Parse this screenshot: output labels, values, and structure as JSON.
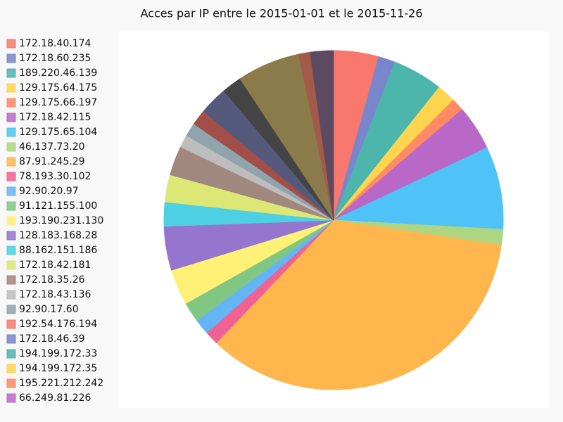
{
  "chart_data": {
    "type": "pie",
    "title": "Acces par IP entre le 2015-01-01 et le 2015-11-26",
    "categories": [
      "172.18.40.174",
      "172.18.60.235",
      "189.220.46.139",
      "129.175.64.175",
      "129.175.66.197",
      "172.18.42.115",
      "129.175.65.104",
      "46.137.73.20",
      "87.91.245.29",
      "78.193.30.102",
      "92.90.20.97",
      "91.121.155.100",
      "193.190.231.130",
      "128.183.168.28",
      "88.162.151.186",
      "172.18.42.181",
      "172.18.35.26",
      "172.18.43.136",
      "92.90.17.60",
      "192.54.176.194",
      "172.18.46.39",
      "194.199.172.33",
      "194.199.172.35",
      "195.221.212.242",
      "66.249.81.226"
    ],
    "values": [
      4.3,
      1.6,
      4.8,
      1.8,
      1.2,
      4.3,
      7.9,
      1.5,
      34.8,
      1.3,
      1.5,
      1.9,
      3.4,
      4.2,
      2.3,
      2.6,
      2.8,
      1.2,
      1.3,
      1.5,
      2.7,
      1.9,
      6.0,
      1.1,
      2.2
    ],
    "colors": [
      "#f8786d",
      "#7986cb",
      "#4db6ac",
      "#ffd54f",
      "#ff8a65",
      "#ba68c8",
      "#4fc3f7",
      "#aed581",
      "#ffb74d",
      "#f06292",
      "#64b5f6",
      "#81c784",
      "#fff176",
      "#9575cd",
      "#4dd0e1",
      "#dce775",
      "#a1887f",
      "#bdbdbd",
      "#90a4ae",
      "#a14f48",
      "#555a7c",
      "#444444",
      "#8c7b4a",
      "#a35a48",
      "#5c4a62"
    ],
    "legend_colors": [
      "#f8786d",
      "#7986cb",
      "#4db6ac",
      "#ffd54f",
      "#ff8a65",
      "#ba68c8",
      "#4fc3f7",
      "#aed581",
      "#ffb74d",
      "#f06292",
      "#64b5f6",
      "#81c784",
      "#fff176",
      "#9575cd",
      "#4dd0e1",
      "#dce775",
      "#a1887f",
      "#bdbdbd",
      "#90a4ae",
      "#f8786d",
      "#7986cb",
      "#4db6ac",
      "#ffd54f",
      "#ff8a65",
      "#ba68c8"
    ],
    "legend": "left"
  }
}
